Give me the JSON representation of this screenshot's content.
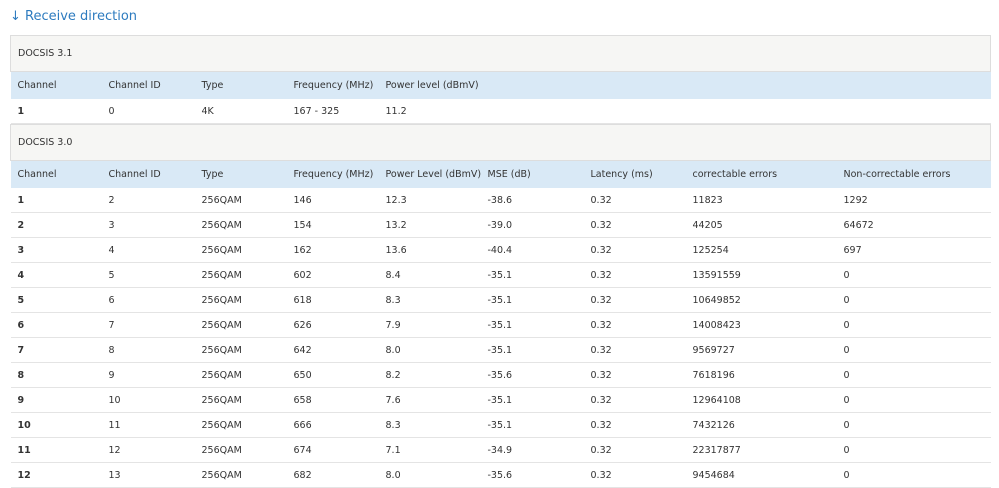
{
  "header": {
    "title": "↓ Receive direction"
  },
  "sections": [
    {
      "title": "DOCSIS 3.1",
      "columns": [
        "Channel",
        "Channel ID",
        "Type",
        "Frequency (MHz)",
        "Power level (dBmV)"
      ],
      "rows": [
        [
          "1",
          "0",
          "4K",
          "167 - 325",
          "11.2"
        ]
      ]
    },
    {
      "title": "DOCSIS 3.0",
      "columns": [
        "Channel",
        "Channel ID",
        "Type",
        "Frequency (MHz)",
        "Power Level (dBmV)",
        "MSE (dB)",
        "Latency (ms)",
        "correctable errors",
        "Non-correctable errors"
      ],
      "rows": [
        [
          "1",
          "2",
          "256QAM",
          "146",
          "12.3",
          "-38.6",
          "0.32",
          "11823",
          "1292"
        ],
        [
          "2",
          "3",
          "256QAM",
          "154",
          "13.2",
          "-39.0",
          "0.32",
          "44205",
          "64672"
        ],
        [
          "3",
          "4",
          "256QAM",
          "162",
          "13.6",
          "-40.4",
          "0.32",
          "125254",
          "697"
        ],
        [
          "4",
          "5",
          "256QAM",
          "602",
          "8.4",
          "-35.1",
          "0.32",
          "13591559",
          "0"
        ],
        [
          "5",
          "6",
          "256QAM",
          "618",
          "8.3",
          "-35.1",
          "0.32",
          "10649852",
          "0"
        ],
        [
          "6",
          "7",
          "256QAM",
          "626",
          "7.9",
          "-35.1",
          "0.32",
          "14008423",
          "0"
        ],
        [
          "7",
          "8",
          "256QAM",
          "642",
          "8.0",
          "-35.1",
          "0.32",
          "9569727",
          "0"
        ],
        [
          "8",
          "9",
          "256QAM",
          "650",
          "8.2",
          "-35.6",
          "0.32",
          "7618196",
          "0"
        ],
        [
          "9",
          "10",
          "256QAM",
          "658",
          "7.6",
          "-35.1",
          "0.32",
          "12964108",
          "0"
        ],
        [
          "10",
          "11",
          "256QAM",
          "666",
          "8.3",
          "-35.1",
          "0.32",
          "7432126",
          "0"
        ],
        [
          "11",
          "12",
          "256QAM",
          "674",
          "7.1",
          "-34.9",
          "0.32",
          "22317877",
          "0"
        ],
        [
          "12",
          "13",
          "256QAM",
          "682",
          "8.0",
          "-35.6",
          "0.32",
          "9454684",
          "0"
        ]
      ]
    }
  ]
}
